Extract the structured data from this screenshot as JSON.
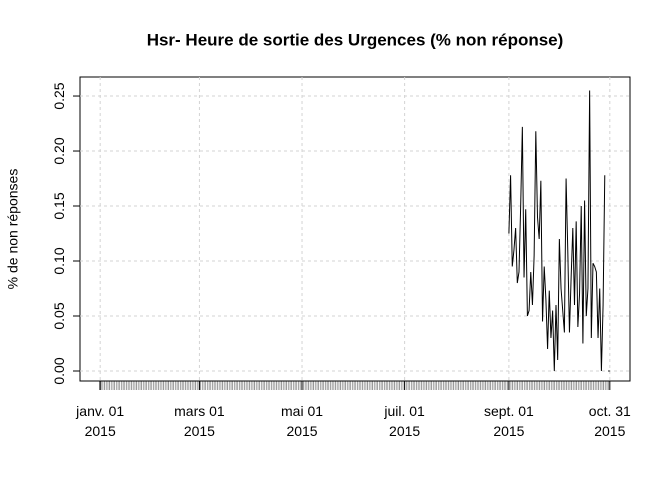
{
  "chart_data": {
    "type": "line",
    "title": "Hsr- Heure de sortie des Urgences (% non réponse)",
    "y_label": "% de non réponses",
    "x": [
      "2015-09-01",
      "2015-09-02",
      "2015-09-03",
      "2015-09-04",
      "2015-09-05",
      "2015-09-06",
      "2015-09-07",
      "2015-09-08",
      "2015-09-09",
      "2015-09-10",
      "2015-09-11",
      "2015-09-12",
      "2015-09-13",
      "2015-09-14",
      "2015-09-15",
      "2015-09-16",
      "2015-09-17",
      "2015-09-18",
      "2015-09-19",
      "2015-09-20",
      "2015-09-21",
      "2015-09-22",
      "2015-09-23",
      "2015-09-24",
      "2015-09-25",
      "2015-09-26",
      "2015-09-27",
      "2015-09-28",
      "2015-09-29",
      "2015-09-30",
      "2015-10-01",
      "2015-10-02",
      "2015-10-03",
      "2015-10-04",
      "2015-10-05",
      "2015-10-06",
      "2015-10-07",
      "2015-10-08",
      "2015-10-09",
      "2015-10-10",
      "2015-10-11",
      "2015-10-12",
      "2015-10-13",
      "2015-10-14",
      "2015-10-15",
      "2015-10-16",
      "2015-10-17",
      "2015-10-18",
      "2015-10-19",
      "2015-10-20",
      "2015-10-21",
      "2015-10-22",
      "2015-10-23",
      "2015-10-24",
      "2015-10-25",
      "2015-10-26",
      "2015-10-27",
      "2015-10-28",
      "2015-10-29",
      "2015-10-30",
      "2015-10-31"
    ],
    "series": [
      {
        "color": "#000000",
        "values": [
          0.125,
          0.178,
          0.095,
          0.11,
          0.13,
          0.08,
          0.09,
          0.15,
          0.222,
          0.085,
          0.147,
          0.05,
          0.055,
          0.09,
          0.06,
          0.105,
          0.218,
          0.14,
          0.12,
          0.173,
          0.045,
          0.095,
          0.065,
          0.02,
          0.073,
          0.03,
          0.055,
          0.0,
          0.06,
          0.01,
          0.12,
          0.075,
          0.055,
          0.035,
          0.175,
          0.11,
          0.035,
          0.085,
          0.13,
          0.06,
          0.136,
          0.04,
          0.07,
          0.15,
          0.025,
          0.155,
          0.05,
          0.075,
          0.255,
          0.03,
          0.098,
          0.095,
          0.09,
          0.03,
          0.075,
          0.0,
          0.06,
          0.178,
          null,
          0.0,
          0.0
        ]
      }
    ],
    "xlim": [
      "2014-12-20",
      "2015-11-12"
    ],
    "xticks": [
      {
        "value": "2015-01-01",
        "label": "janv. 01\n2015"
      },
      {
        "value": "2015-03-01",
        "label": "mars 01\n2015"
      },
      {
        "value": "2015-05-01",
        "label": "mai 01\n2015"
      },
      {
        "value": "2015-07-01",
        "label": "juil. 01\n2015"
      },
      {
        "value": "2015-09-01",
        "label": "sept. 01\n2015"
      },
      {
        "value": "2015-10-31",
        "label": "oct. 31\n2015"
      }
    ],
    "ylim": [
      -0.0091,
      0.2673
    ],
    "yticks": [
      {
        "value": 0,
        "label": "0.00"
      },
      0.05,
      {
        "value": 0.1,
        "label": "0.10"
      },
      {
        "value": 0.15,
        "label": "0.15"
      },
      {
        "value": 0.2,
        "label": "0.20"
      },
      0.25
    ],
    "grid": true
  }
}
